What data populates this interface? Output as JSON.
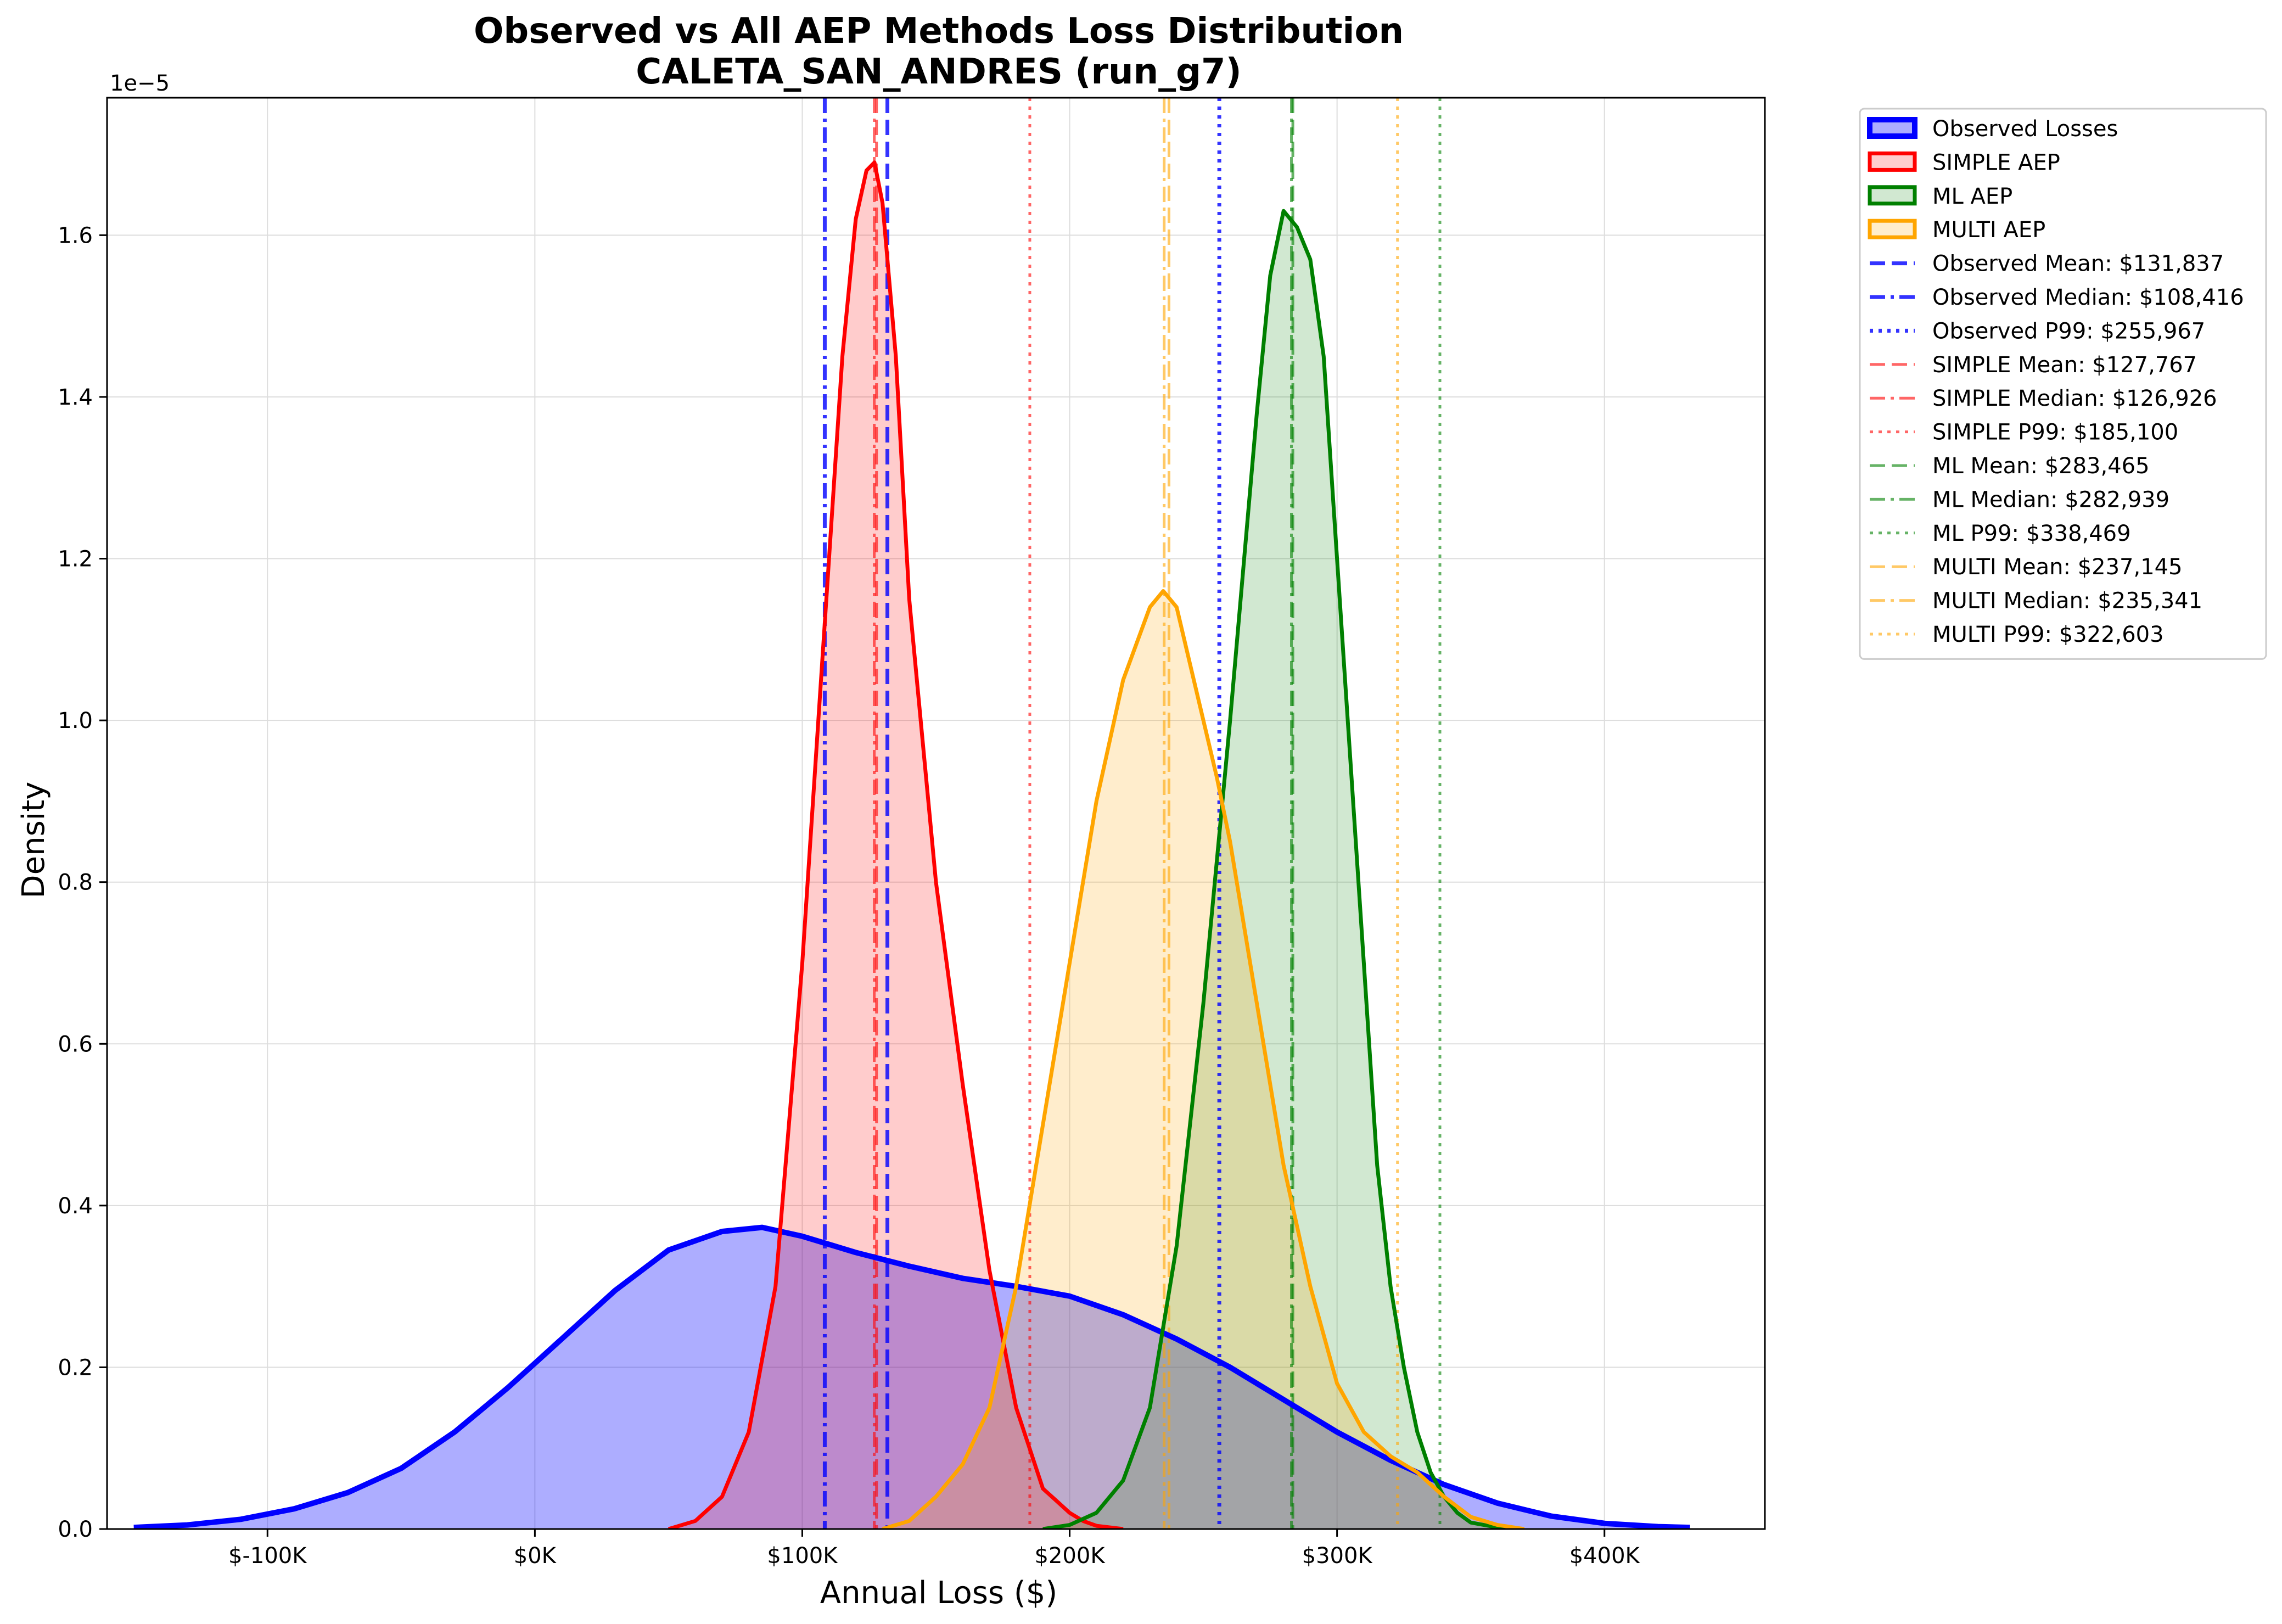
{
  "chart_data": {
    "type": "area",
    "title": "Observed vs All AEP Methods Loss Distribution",
    "subtitle": "CALETA_SAN_ANDRES (run_g7)",
    "xlabel": "Annual Loss ($)",
    "ylabel": "Density",
    "y_offset_label": "1e−5",
    "y_scale": 1e-05,
    "xlim": [
      -160000,
      460000
    ],
    "ylim": [
      0,
      1.77
    ],
    "x_ticks": [
      -100000,
      0,
      100000,
      200000,
      300000,
      400000
    ],
    "x_tick_labels": [
      "$-100K",
      "$0K",
      "$100K",
      "$200K",
      "$300K",
      "$400K"
    ],
    "y_ticks": [
      0.0,
      0.2,
      0.4,
      0.6,
      0.8,
      1.0,
      1.2,
      1.4,
      1.6
    ],
    "y_tick_labels": [
      "0.0",
      "0.2",
      "0.4",
      "0.6",
      "0.8",
      "1.0",
      "1.2",
      "1.4",
      "1.6"
    ],
    "grid": true,
    "legend_position": "outside-right-top",
    "series": [
      {
        "name": "Observed Losses",
        "color": "#0000ff",
        "fill": "#0000ff",
        "fill_opacity": 0.32,
        "stroke_width": 10,
        "x": [
          -150000,
          -130000,
          -110000,
          -90000,
          -70000,
          -50000,
          -30000,
          -10000,
          0,
          10000,
          30000,
          50000,
          70000,
          85000,
          100000,
          120000,
          140000,
          160000,
          180000,
          200000,
          220000,
          240000,
          260000,
          280000,
          300000,
          320000,
          340000,
          360000,
          380000,
          400000,
          420000,
          432000
        ],
        "y": [
          0.002,
          0.005,
          0.012,
          0.025,
          0.045,
          0.075,
          0.12,
          0.175,
          0.205,
          0.235,
          0.295,
          0.345,
          0.368,
          0.373,
          0.362,
          0.342,
          0.325,
          0.31,
          0.3,
          0.288,
          0.265,
          0.235,
          0.2,
          0.16,
          0.12,
          0.085,
          0.055,
          0.032,
          0.016,
          0.007,
          0.003,
          0.002
        ]
      },
      {
        "name": "SIMPLE AEP",
        "color": "#ff0000",
        "fill": "#ff0000",
        "fill_opacity": 0.2,
        "stroke_width": 7,
        "x": [
          50000,
          60000,
          70000,
          80000,
          90000,
          100000,
          110000,
          115000,
          120000,
          124000,
          127000,
          130000,
          135000,
          140000,
          150000,
          160000,
          170000,
          180000,
          190000,
          195000,
          200000,
          205000,
          210000,
          220000
        ],
        "y": [
          0.0,
          0.01,
          0.04,
          0.12,
          0.3,
          0.7,
          1.2,
          1.45,
          1.62,
          1.68,
          1.69,
          1.64,
          1.45,
          1.15,
          0.8,
          0.55,
          0.32,
          0.15,
          0.05,
          0.035,
          0.02,
          0.01,
          0.004,
          0.0
        ]
      },
      {
        "name": "ML AEP",
        "color": "#008000",
        "fill": "#008000",
        "fill_opacity": 0.18,
        "stroke_width": 7,
        "x": [
          190000,
          200000,
          210000,
          220000,
          230000,
          240000,
          250000,
          260000,
          270000,
          275000,
          280000,
          285000,
          290000,
          295000,
          300000,
          305000,
          310000,
          315000,
          320000,
          325000,
          330000,
          335000,
          340000,
          345000,
          350000,
          360000,
          370000
        ],
        "y": [
          0.0,
          0.005,
          0.02,
          0.06,
          0.15,
          0.35,
          0.65,
          1.0,
          1.38,
          1.55,
          1.63,
          1.61,
          1.57,
          1.45,
          1.2,
          0.95,
          0.7,
          0.45,
          0.3,
          0.2,
          0.12,
          0.07,
          0.04,
          0.02,
          0.008,
          0.002,
          0.0
        ]
      },
      {
        "name": "MULTI AEP",
        "color": "#ffa500",
        "fill": "#ffa500",
        "fill_opacity": 0.2,
        "stroke_width": 7,
        "x": [
          130000,
          140000,
          150000,
          160000,
          170000,
          180000,
          190000,
          200000,
          210000,
          220000,
          230000,
          235000,
          240000,
          245000,
          250000,
          255000,
          260000,
          270000,
          280000,
          290000,
          300000,
          310000,
          320000,
          330000,
          340000,
          350000,
          360000,
          370000
        ],
        "y": [
          0.0,
          0.01,
          0.04,
          0.08,
          0.15,
          0.3,
          0.5,
          0.7,
          0.9,
          1.05,
          1.14,
          1.16,
          1.14,
          1.07,
          1.0,
          0.93,
          0.85,
          0.65,
          0.45,
          0.3,
          0.18,
          0.12,
          0.09,
          0.07,
          0.04,
          0.015,
          0.005,
          0.0
        ]
      }
    ],
    "reference_lines": [
      {
        "label": "Observed Mean: $131,837",
        "x": 131837,
        "color": "#0000ff",
        "style": "dashed",
        "opacity": 0.8
      },
      {
        "label": "Observed Median: $108,416",
        "x": 108416,
        "color": "#0000ff",
        "style": "dashdot",
        "opacity": 0.8
      },
      {
        "label": "Observed P99: $255,967",
        "x": 255967,
        "color": "#0000ff",
        "style": "dotted",
        "opacity": 0.8
      },
      {
        "label": "SIMPLE Mean: $127,767",
        "x": 127767,
        "color": "#ff0000",
        "style": "dashed",
        "opacity": 0.6
      },
      {
        "label": "SIMPLE Median: $126,926",
        "x": 126926,
        "color": "#ff0000",
        "style": "dashdot",
        "opacity": 0.6
      },
      {
        "label": "SIMPLE P99: $185,100",
        "x": 185100,
        "color": "#ff0000",
        "style": "dotted",
        "opacity": 0.6
      },
      {
        "label": "ML Mean: $283,465",
        "x": 283465,
        "color": "#008000",
        "style": "dashed",
        "opacity": 0.6
      },
      {
        "label": "ML Median: $282,939",
        "x": 282939,
        "color": "#008000",
        "style": "dashdot",
        "opacity": 0.6
      },
      {
        "label": "ML P99: $338,469",
        "x": 338469,
        "color": "#008000",
        "style": "dotted",
        "opacity": 0.6
      },
      {
        "label": "MULTI Mean: $237,145",
        "x": 237145,
        "color": "#ffa500",
        "style": "dashed",
        "opacity": 0.6
      },
      {
        "label": "MULTI Median: $235,341",
        "x": 235341,
        "color": "#ffa500",
        "style": "dashdot",
        "opacity": 0.6
      },
      {
        "label": "MULTI P99: $322,603",
        "x": 322603,
        "color": "#ffa500",
        "style": "dotted",
        "opacity": 0.6
      }
    ]
  }
}
